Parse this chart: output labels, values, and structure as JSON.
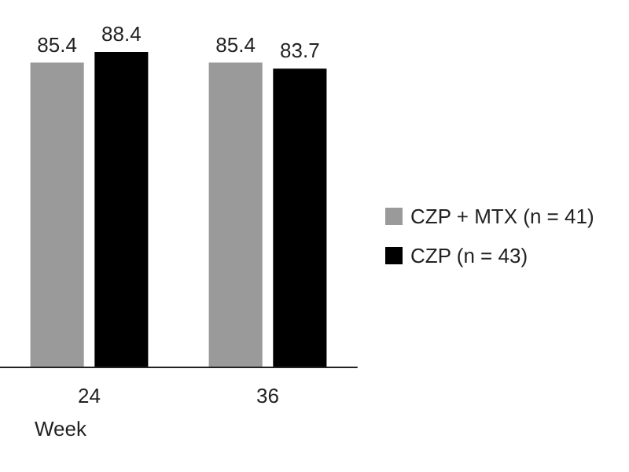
{
  "chart_data": {
    "type": "bar",
    "xlabel": "Week",
    "categories": [
      "24",
      "36"
    ],
    "series": [
      {
        "name": "CZP + MTX (n = 41)",
        "color": "#9a9a9a",
        "values": [
          85.4,
          85.4
        ]
      },
      {
        "name": "CZP (n = 43)",
        "color": "#000000",
        "values": [
          88.4,
          83.7
        ]
      }
    ],
    "data_labels": true,
    "legend": "right"
  }
}
